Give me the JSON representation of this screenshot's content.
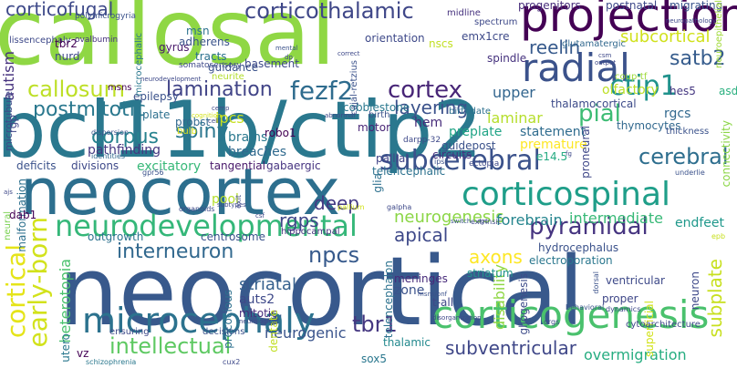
{
  "words": [
    {
      "text": "callosal",
      "color": "#8fd744"
    },
    {
      "text": "bcl11b/ctip2",
      "color": "#2a788e"
    },
    {
      "text": "neocortex",
      "color": "#2d6f8e"
    },
    {
      "text": "neocortical",
      "color": "#38598c"
    },
    {
      "text": "projection",
      "color": "#440154"
    },
    {
      "text": "radial",
      "color": "#3b528b"
    },
    {
      "text": "corticothalamic",
      "color": "#3f4788"
    },
    {
      "text": "neurodevelopmental",
      "color": "#35b779"
    },
    {
      "text": "microcephaly",
      "color": "#2c728e"
    },
    {
      "text": "corticogenesis",
      "color": "#4ac16d"
    },
    {
      "text": "corticospinal",
      "color": "#1f9e89"
    },
    {
      "text": "subcerebral",
      "color": "#3b528b"
    },
    {
      "text": "fezf2",
      "color": "#2f6c8e"
    },
    {
      "text": "corticofugal",
      "color": "#3e4989"
    },
    {
      "text": "ctip1",
      "color": "#20928c"
    },
    {
      "text": "cortex",
      "color": "#482677"
    },
    {
      "text": "lamination",
      "color": "#414487"
    },
    {
      "text": "callosum",
      "color": "#bddf26"
    },
    {
      "text": "pyramidal",
      "color": "#463480"
    },
    {
      "text": "early-born",
      "color": "#d2e21b"
    },
    {
      "text": "cortical",
      "color": "#e5e419"
    },
    {
      "text": "reelin",
      "color": "#375a8c"
    },
    {
      "text": "satb2",
      "color": "#365c8d"
    },
    {
      "text": "postmitotic",
      "color": "#2a788e"
    },
    {
      "text": "pial",
      "color": "#3dbc74"
    },
    {
      "text": "subcortical",
      "color": "#d0e11c"
    },
    {
      "text": "layering",
      "color": "#3b528b"
    },
    {
      "text": "cerebral",
      "color": "#2e6e8e"
    },
    {
      "text": "spiny",
      "color": "#2a768e"
    },
    {
      "text": "corpus",
      "color": "#26828e"
    },
    {
      "text": "deep",
      "color": "#443983"
    },
    {
      "text": "neurogenesis",
      "color": "#8bd646"
    },
    {
      "text": "npcs",
      "color": "#375a8c"
    },
    {
      "text": "interneuron",
      "color": "#31688e"
    },
    {
      "text": "tbr1",
      "color": "#453781"
    },
    {
      "text": "axons",
      "color": "#fde725"
    },
    {
      "text": "apical",
      "color": "#3e4989"
    },
    {
      "text": "subventricular",
      "color": "#3f4788"
    },
    {
      "text": "intellectual",
      "color": "#5ec962"
    },
    {
      "text": "upper",
      "color": "#32658e"
    },
    {
      "text": "laminar",
      "color": "#b5de2b"
    },
    {
      "text": "forebrain",
      "color": "#25858e"
    },
    {
      "text": "intermediate",
      "color": "#38b977"
    },
    {
      "text": "autism",
      "color": "#46327e"
    },
    {
      "text": "rgps",
      "color": "#3f4788"
    },
    {
      "text": "striatal",
      "color": "#35608d"
    },
    {
      "text": "subplate",
      "color": "#c8e020"
    },
    {
      "text": "disability",
      "color": "#8fd744"
    },
    {
      "text": "heterotopia",
      "color": "#4ac16d"
    },
    {
      "text": "neurogenic",
      "color": "#3a548c"
    },
    {
      "text": "overmigration",
      "color": "#27ad81"
    },
    {
      "text": "hem",
      "color": "#472c7a"
    },
    {
      "text": "ipcs",
      "color": "#c8e020"
    },
    {
      "text": "brains",
      "color": "#2a788e"
    },
    {
      "text": "breaches",
      "color": "#306a8e"
    },
    {
      "text": "pathfinding",
      "color": "#453781"
    },
    {
      "text": "excitatory",
      "color": "#37b878"
    },
    {
      "text": "tangential",
      "color": "#48186a"
    },
    {
      "text": "gabaergic",
      "color": "#463480"
    },
    {
      "text": "preplate",
      "color": "#20a486"
    },
    {
      "text": "statement",
      "color": "#2f6c8e"
    },
    {
      "text": "premature",
      "color": "#fde725"
    },
    {
      "text": "guidepost",
      "color": "#3b528b"
    },
    {
      "text": "e14.5",
      "color": "#25ab82"
    },
    {
      "text": "circuits",
      "color": "#46307e"
    },
    {
      "text": "pallial",
      "color": "#414487"
    },
    {
      "text": "telencephalic",
      "color": "#2c718e"
    },
    {
      "text": "cobblestone",
      "color": "#2a788e"
    },
    {
      "text": "thalamocortical",
      "color": "#3e4c8a"
    },
    {
      "text": "hes5",
      "color": "#453781"
    },
    {
      "text": "rgcs",
      "color": "#31688e"
    },
    {
      "text": "thymocytes",
      "color": "#31688e"
    },
    {
      "text": "asd",
      "color": "#2ab07f"
    },
    {
      "text": "olfactory",
      "color": "#bddf26"
    },
    {
      "text": "coup-tf",
      "color": "#9fda3a"
    },
    {
      "text": "endfeet",
      "color": "#1f988b"
    },
    {
      "text": "pool",
      "color": "#b5de2b"
    },
    {
      "text": "hippocampal",
      "color": "#46327e"
    },
    {
      "text": "hydrocephalus",
      "color": "#3b528b"
    },
    {
      "text": "electroporation",
      "color": "#2a778e"
    },
    {
      "text": "striatum",
      "color": "#20928c"
    },
    {
      "text": "auts2",
      "color": "#3e4989"
    },
    {
      "text": "mitotic",
      "color": "#472d7b"
    },
    {
      "text": "precocious",
      "color": "#2d708e"
    },
    {
      "text": "meninges",
      "color": "#472a7a"
    },
    {
      "text": "zone",
      "color": "#3b528b"
    },
    {
      "text": "t-all",
      "color": "#3f4788"
    },
    {
      "text": "ventricular",
      "color": "#3e4a89"
    },
    {
      "text": "proper",
      "color": "#3f4788"
    },
    {
      "text": "superficial",
      "color": "#d2e21b"
    },
    {
      "text": "gliogenesis",
      "color": "#3e4c8a"
    },
    {
      "text": "sox5",
      "color": "#2a778e"
    },
    {
      "text": "thalamic",
      "color": "#23898e"
    },
    {
      "text": "neuron",
      "color": "#3e4989"
    },
    {
      "text": "motor",
      "color": "#482576"
    },
    {
      "text": "robo1",
      "color": "#440154"
    },
    {
      "text": "probst",
      "color": "#31688e"
    },
    {
      "text": "bulb",
      "color": "#dde318"
    },
    {
      "text": "adherens",
      "color": "#3a538b"
    },
    {
      "text": "msn",
      "color": "#2c728e"
    },
    {
      "text": "tracts",
      "color": "#2c718e"
    },
    {
      "text": "guidance",
      "color": "#3b528b"
    },
    {
      "text": "neurite",
      "color": "#b2dd2d"
    },
    {
      "text": "gyrus",
      "color": "#48186a"
    },
    {
      "text": "lissencephaly",
      "color": "#3e4989"
    },
    {
      "text": "nurd",
      "color": "#3f4788"
    },
    {
      "text": "tbr2",
      "color": "#440154"
    },
    {
      "text": "msns",
      "color": "#440154"
    },
    {
      "text": "plate",
      "color": "#2d708e"
    },
    {
      "text": "epilepsy",
      "color": "#3b528b"
    },
    {
      "text": "rgp",
      "color": "#404688"
    },
    {
      "text": "microtubule",
      "color": "#3e4989"
    },
    {
      "text": "deficits",
      "color": "#3b528b"
    },
    {
      "text": "divisions",
      "color": "#3e4989"
    },
    {
      "text": "malformation",
      "color": "#2d708e"
    },
    {
      "text": "dab1",
      "color": "#440154"
    },
    {
      "text": "neural",
      "color": "#7ad151"
    },
    {
      "text": "outgrowth",
      "color": "#2c728e"
    },
    {
      "text": "centrosome",
      "color": "#3b528b"
    },
    {
      "text": "emx1cre",
      "color": "#3e4a89"
    },
    {
      "text": "nscs",
      "color": "#c2df23"
    },
    {
      "text": "orientation",
      "color": "#3e4989"
    },
    {
      "text": "spindle",
      "color": "#46327e"
    },
    {
      "text": "glutamatergic",
      "color": "#31688e"
    },
    {
      "text": "migrating",
      "color": "#3a548c"
    },
    {
      "text": "postnatal",
      "color": "#3e4989"
    },
    {
      "text": "progenitors",
      "color": "#472d7b"
    },
    {
      "text": "basement",
      "color": "#3e4a89"
    },
    {
      "text": "microcephalic",
      "color": "#2a788e"
    },
    {
      "text": "cajal-retzius",
      "color": "#3b528b"
    },
    {
      "text": "glia",
      "color": "#2d708e"
    },
    {
      "text": "telencephalon",
      "color": "#2c728e"
    },
    {
      "text": "vz",
      "color": "#440154"
    },
    {
      "text": "utero",
      "color": "#2a788e"
    },
    {
      "text": "dentate",
      "color": "#c2df23"
    },
    {
      "text": "ensuring",
      "color": "#3e4989"
    },
    {
      "text": "decisions",
      "color": "#3b528b"
    },
    {
      "text": "cytoarchitecture",
      "color": "#3e4989"
    },
    {
      "text": "proneural",
      "color": "#3f4788"
    },
    {
      "text": "connectivity",
      "color": "#8bd646"
    },
    {
      "text": "neuroepithelial",
      "color": "#a0da39"
    },
    {
      "text": "thickness",
      "color": "#3b528b"
    },
    {
      "text": "birthdate",
      "color": "#2d708e"
    },
    {
      "text": "birth",
      "color": "#3b528b"
    },
    {
      "text": "spectrum",
      "color": "#3e4989"
    },
    {
      "text": "midline",
      "color": "#46327e"
    },
    {
      "text": "somatosensory",
      "color": "#3e4989"
    },
    {
      "text": "ovalbumin",
      "color": "#46327e"
    },
    {
      "text": "polymicrogyria",
      "color": "#3b528b"
    },
    {
      "text": "ectopia",
      "color": "#3e4989"
    },
    {
      "text": "darpp-32",
      "color": "#3e4989"
    },
    {
      "text": "dispersion",
      "color": "#3b528b"
    },
    {
      "text": "identities",
      "color": "#31688e"
    },
    {
      "text": "organoids",
      "color": "#3e4989"
    },
    {
      "text": "schizophrenia",
      "color": "#2a788e"
    },
    {
      "text": "gpr56",
      "color": "#3b528b"
    },
    {
      "text": "extrinsic",
      "color": "#3e4989"
    },
    {
      "text": "galpha",
      "color": "#3e4989"
    },
    {
      "text": "pallium",
      "color": "#d2e21b"
    },
    {
      "text": "underlie",
      "color": "#3b528b"
    },
    {
      "text": "epb",
      "color": "#c8e020"
    },
    {
      "text": "behavioral",
      "color": "#3b528b"
    },
    {
      "text": "dynamics",
      "color": "#3e4989"
    },
    {
      "text": "orgs",
      "color": "#3e4989"
    },
    {
      "text": "cux2",
      "color": "#3e4989"
    },
    {
      "text": "dorsal",
      "color": "#3b528b"
    },
    {
      "text": "exit",
      "color": "#3e4989"
    },
    {
      "text": "ips",
      "color": "#3b528b"
    },
    {
      "text": "neurological",
      "color": "#3e4989"
    },
    {
      "text": "disorganization",
      "color": "#3e4989"
    },
    {
      "text": "msns/onf",
      "color": "#3b528b"
    },
    {
      "text": "switch",
      "color": "#3b528b"
    },
    {
      "text": "rgc",
      "color": "#3e4989"
    },
    {
      "text": "correct",
      "color": "#3e4989"
    },
    {
      "text": "mental",
      "color": "#3b528b"
    },
    {
      "text": "output",
      "color": "#3e4989"
    },
    {
      "text": "csm",
      "color": "#3e4989"
    },
    {
      "text": "cognition",
      "color": "#d2e21b"
    },
    {
      "text": "abnormal",
      "color": "#3e4989"
    },
    {
      "text": "neurodevelopment",
      "color": "#3e4989"
    },
    {
      "text": "neuropathology",
      "color": "#3e4989"
    },
    {
      "text": "cell",
      "color": "#3e4989"
    },
    {
      "text": "cemp",
      "color": "#3e4989"
    },
    {
      "text": "ajs",
      "color": "#3e4989"
    },
    {
      "text": "subtypes",
      "color": "#3e4989"
    },
    {
      "text": "csf",
      "color": "#3e4989"
    },
    {
      "text": "fg",
      "color": "#3e4989"
    },
    {
      "text": "dp",
      "color": "#3e4989"
    }
  ]
}
